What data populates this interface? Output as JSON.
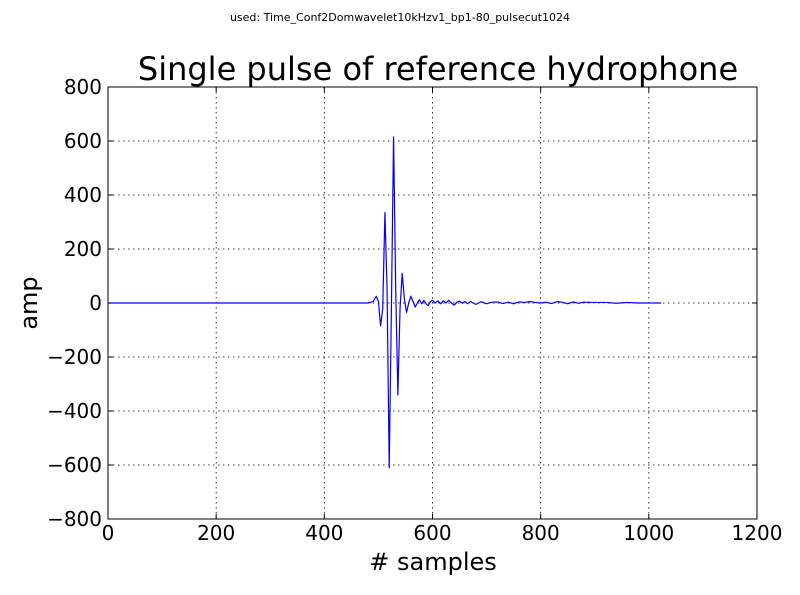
{
  "suptitle": "used: Time_Conf2Domwavelet10kHzv1_bp1-80_pulsecut1024",
  "chart_data": {
    "type": "line",
    "title": "Single pulse of reference hydrophone",
    "xlabel": "# samples",
    "ylabel": "amp",
    "xlim": [
      0,
      1200
    ],
    "ylim": [
      -800,
      800
    ],
    "xticks": [
      0,
      200,
      400,
      600,
      800,
      1000,
      1200
    ],
    "yticks": [
      -800,
      -600,
      -400,
      -200,
      0,
      200,
      400,
      600,
      800
    ],
    "xtick_labels": [
      "0",
      "200",
      "400",
      "600",
      "800",
      "1000",
      "1200"
    ],
    "ytick_labels": [
      "−800",
      "−600",
      "−400",
      "−200",
      "0",
      "200",
      "400",
      "600",
      "800"
    ],
    "grid": true,
    "color": "#0000ff",
    "series": [
      {
        "x": [
          0,
          100,
          200,
          300,
          400,
          480,
          490,
          496,
          500,
          504,
          508,
          512,
          516,
          520,
          524,
          528,
          532,
          536,
          540,
          544,
          548,
          552,
          556,
          560,
          564,
          568,
          572,
          576,
          580,
          584,
          588,
          592,
          596,
          600,
          605,
          610,
          615,
          620,
          625,
          630,
          635,
          640,
          645,
          650,
          655,
          660,
          665,
          670,
          675,
          680,
          690,
          700,
          710,
          720,
          730,
          740,
          750,
          760,
          770,
          780,
          790,
          800,
          810,
          820,
          830,
          840,
          850,
          860,
          870,
          880,
          900,
          920,
          940,
          960,
          980,
          1000,
          1023
        ],
        "y": [
          0,
          0,
          0,
          0,
          0,
          0,
          5,
          25,
          5,
          -85,
          -20,
          335,
          50,
          -610,
          -20,
          615,
          50,
          -340,
          -20,
          110,
          15,
          -35,
          0,
          25,
          5,
          -15,
          0,
          12,
          -3,
          10,
          -3,
          -10,
          5,
          10,
          0,
          8,
          -3,
          8,
          0,
          10,
          0,
          -8,
          3,
          7,
          0,
          5,
          -3,
          6,
          0,
          -5,
          5,
          -3,
          3,
          4,
          -2,
          3,
          -3,
          4,
          2,
          5,
          2,
          0,
          3,
          -2,
          5,
          3,
          -3,
          4,
          -1,
          3,
          2,
          2,
          -1,
          2,
          0,
          0,
          0
        ]
      }
    ]
  }
}
